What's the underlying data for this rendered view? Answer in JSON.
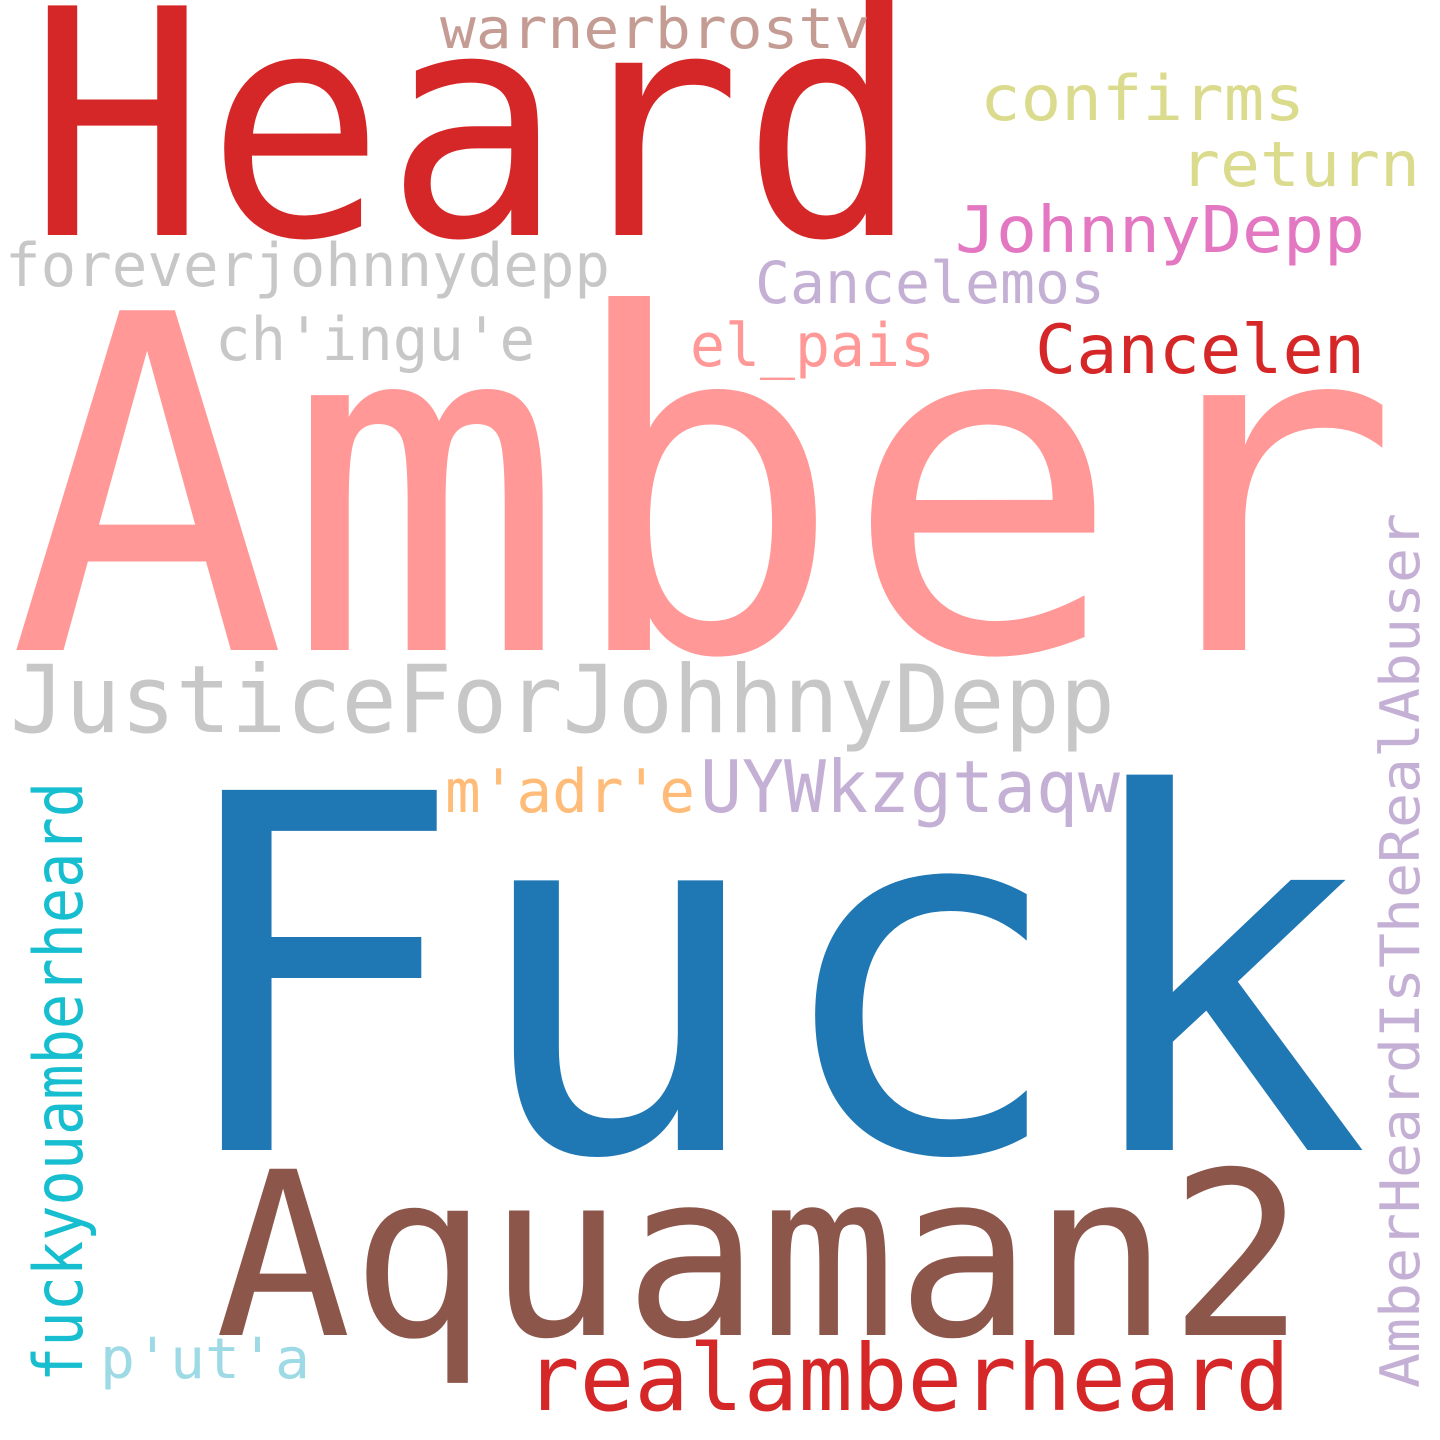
{
  "words": [
    {
      "text": "Heard",
      "color": "#d62728"
    },
    {
      "text": "warnerbrostv",
      "color": "#c49c94"
    },
    {
      "text": "confirms",
      "color": "#dbdb8d"
    },
    {
      "text": "return",
      "color": "#dbdb8d"
    },
    {
      "text": "JohnnyDepp",
      "color": "#e377c2"
    },
    {
      "text": "foreverjohnnydepp",
      "color": "#c7c7c7"
    },
    {
      "text": "Cancelemos",
      "color": "#c5b0d5"
    },
    {
      "text": "ch'ingu'e",
      "color": "#c7c7c7"
    },
    {
      "text": "el_pais",
      "color": "#ff9896"
    },
    {
      "text": "Cancelen",
      "color": "#d62728"
    },
    {
      "text": "Amber",
      "color": "#ff9896"
    },
    {
      "text": "JusticeForJohhnyDepp",
      "color": "#c7c7c7"
    },
    {
      "text": "m'adr'e",
      "color": "#ffbb78"
    },
    {
      "text": "UYWkzgtaqw",
      "color": "#c5b0d5"
    },
    {
      "text": "Fuck",
      "color": "#1f77b4"
    },
    {
      "text": "Aquaman2",
      "color": "#8c564b"
    },
    {
      "text": "realamberheard",
      "color": "#d62728"
    },
    {
      "text": "p'ut'a",
      "color": "#9edae5"
    },
    {
      "text": "fuckyouamberheard",
      "color": "#17becf"
    },
    {
      "text": "AmberHeardIsTheRealAbuser",
      "color": "#c5b0d5"
    }
  ]
}
